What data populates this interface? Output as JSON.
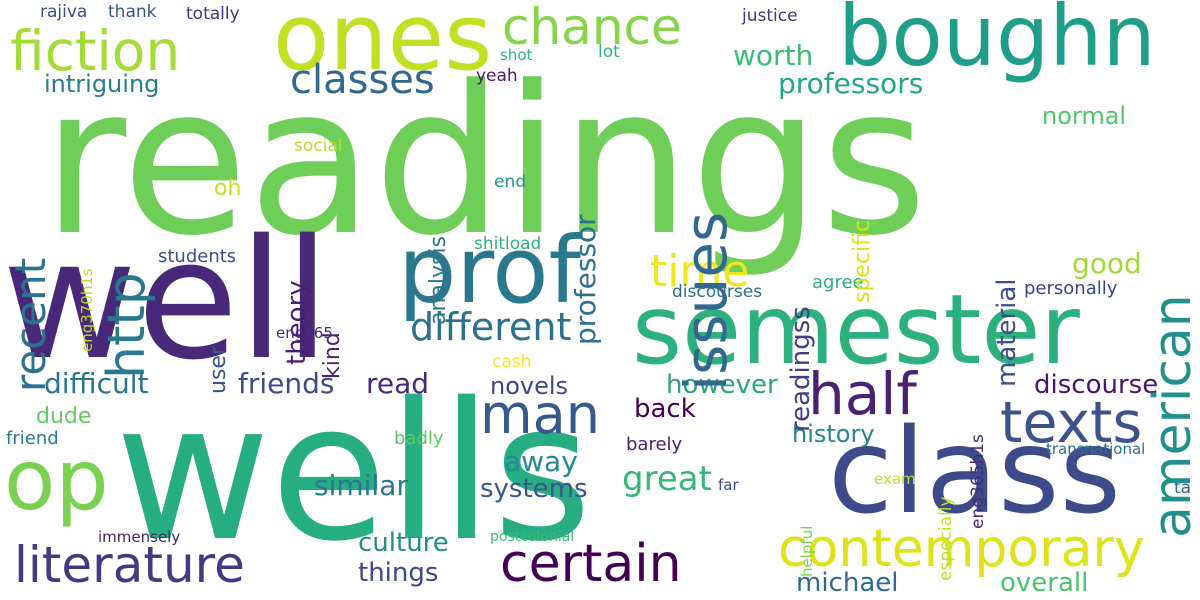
{
  "words": [
    {
      "text": "readings",
      "color": "#6ece58"
    },
    {
      "text": "wells",
      "color": "#26ad81"
    },
    {
      "text": "well",
      "color": "#482878"
    },
    {
      "text": "semester",
      "color": "#2cb17e"
    },
    {
      "text": "class",
      "color": "#3e4a89"
    },
    {
      "text": "ones",
      "color": "#c2df23"
    },
    {
      "text": "boughn",
      "color": "#1f9e89"
    },
    {
      "text": "prof",
      "color": "#2a788e"
    },
    {
      "text": "op",
      "color": "#7ad151"
    },
    {
      "text": "fiction",
      "color": "#a5db36"
    },
    {
      "text": "chance",
      "color": "#86d549"
    },
    {
      "text": "man",
      "color": "#38598c"
    },
    {
      "text": "half",
      "color": "#482173"
    },
    {
      "text": "texts",
      "color": "#3b528b"
    },
    {
      "text": "american",
      "color": "#21908d"
    },
    {
      "text": "contemporary",
      "color": "#dde318"
    },
    {
      "text": "literature",
      "color": "#443a83"
    },
    {
      "text": "certain",
      "color": "#440154"
    },
    {
      "text": "classes",
      "color": "#31688e"
    },
    {
      "text": "issues",
      "color": "#31688e"
    },
    {
      "text": "time",
      "color": "#f1e51d"
    },
    {
      "text": "different",
      "color": "#2d708e"
    },
    {
      "text": "http",
      "color": "#2a788e"
    },
    {
      "text": "recent",
      "color": "#2c728e"
    },
    {
      "text": "worth",
      "color": "#3bbb75"
    },
    {
      "text": "professors",
      "color": "#22a785"
    },
    {
      "text": "intriguing",
      "color": "#287c8e"
    },
    {
      "text": "normal",
      "color": "#54c568"
    },
    {
      "text": "professor",
      "color": "#2e6e8e"
    },
    {
      "text": "analysis",
      "color": "#2a768e"
    },
    {
      "text": "specific",
      "color": "#d8e219"
    },
    {
      "text": "readingss",
      "color": "#433d84"
    },
    {
      "text": "material",
      "color": "#3d4d8a"
    },
    {
      "text": "good",
      "color": "#a0da39"
    },
    {
      "text": "personally",
      "color": "#404387"
    },
    {
      "text": "theory",
      "color": "#481f71"
    },
    {
      "text": "kind",
      "color": "#482475"
    },
    {
      "text": "user",
      "color": "#39558c"
    },
    {
      "text": "students",
      "color": "#3e4c8a"
    },
    {
      "text": "agree",
      "color": "#2ab07f"
    },
    {
      "text": "discourses",
      "color": "#2e6e8e"
    },
    {
      "text": "difficult",
      "color": "#2b748e"
    },
    {
      "text": "friends",
      "color": "#3e4a89"
    },
    {
      "text": "read",
      "color": "#482878"
    },
    {
      "text": "novels",
      "color": "#404688"
    },
    {
      "text": "however",
      "color": "#2ea37f"
    },
    {
      "text": "discourse",
      "color": "#481668"
    },
    {
      "text": "back",
      "color": "#440154"
    },
    {
      "text": "history",
      "color": "#25848e"
    },
    {
      "text": "dude",
      "color": "#65cb5e"
    },
    {
      "text": "friend",
      "color": "#287d8e"
    },
    {
      "text": "badly",
      "color": "#5ec962"
    },
    {
      "text": "barely",
      "color": "#481d6f"
    },
    {
      "text": "away",
      "color": "#23898e"
    },
    {
      "text": "great",
      "color": "#35b779"
    },
    {
      "text": "similar",
      "color": "#2a788e"
    },
    {
      "text": "systems",
      "color": "#39568c"
    },
    {
      "text": "culture",
      "color": "#23898e"
    },
    {
      "text": "things",
      "color": "#3f4788"
    },
    {
      "text": "michael",
      "color": "#31688e"
    },
    {
      "text": "overall",
      "color": "#4ac16d"
    },
    {
      "text": "rajiva",
      "color": "#3e4989"
    },
    {
      "text": "thank",
      "color": "#39568c"
    },
    {
      "text": "totally",
      "color": "#46327e"
    },
    {
      "text": "justice",
      "color": "#463480"
    },
    {
      "text": "shot",
      "color": "#2fb47c"
    },
    {
      "text": "lot",
      "color": "#2fb47c"
    },
    {
      "text": "yeah",
      "color": "#48186a"
    },
    {
      "text": "social",
      "color": "#b8de29"
    },
    {
      "text": "oh",
      "color": "#c8e020"
    },
    {
      "text": "end",
      "color": "#1e9b8a"
    },
    {
      "text": "eng370h1s",
      "color": "#b5de2b"
    },
    {
      "text": "shitload",
      "color": "#2db27d"
    },
    {
      "text": "eng365",
      "color": "#472a7a"
    },
    {
      "text": "cash",
      "color": "#fde725"
    },
    {
      "text": "eng365h1s",
      "color": "#472c7a"
    },
    {
      "text": "especially",
      "color": "#bddf26"
    },
    {
      "text": "transnational",
      "color": "#2d708e"
    },
    {
      "text": "helpful",
      "color": "#7fd34e"
    },
    {
      "text": "exam",
      "color": "#c0df25"
    },
    {
      "text": "far",
      "color": "#3d4e8a"
    },
    {
      "text": "ta",
      "color": "#31688e"
    },
    {
      "text": "immensely",
      "color": "#482173"
    },
    {
      "text": "postcolonial",
      "color": "#3aba76"
    }
  ]
}
